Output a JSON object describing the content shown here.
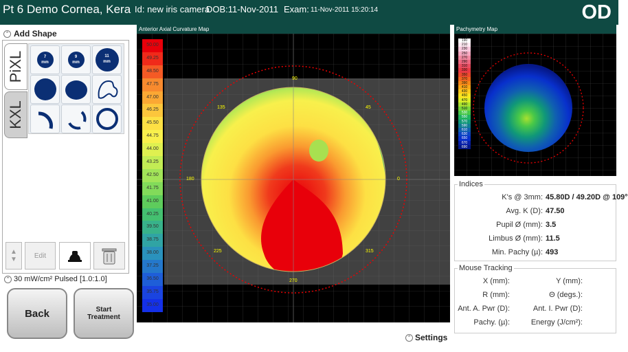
{
  "header": {
    "patient": "Pt 6 Demo Cornea, Kera",
    "id": "Id: new iris camera",
    "dob": "DOB:11-Nov-2011",
    "exam_label": "Exam:",
    "exam_value": "11-Nov-2011 15:20:14",
    "eye": "OD"
  },
  "add_shape": {
    "title": "Add Shape",
    "tabs": [
      "PiXL",
      "KXL"
    ],
    "sizes": [
      {
        "value": "7",
        "unit": "mm"
      },
      {
        "value": "9",
        "unit": "mm"
      },
      {
        "value": "11",
        "unit": "mm"
      }
    ],
    "edit_label": "Edit"
  },
  "pulse": "30 mW/cm² Pulsed [1.0:1.0]",
  "buttons": {
    "back": "Back",
    "start": "Start Treatment"
  },
  "axial_map": {
    "title": "Anterior Axial Curvature Map",
    "legend": [
      "50.00",
      "49.25",
      "48.50",
      "47.75",
      "47.00",
      "46.25",
      "45.50",
      "44.75",
      "44.00",
      "43.25",
      "42.50",
      "41.75",
      "41.00",
      "40.25",
      "39.50",
      "38.75",
      "38.00",
      "37.25",
      "36.50",
      "35.75",
      "35.00"
    ],
    "legend_colors": [
      "#e8000a",
      "#f02a1a",
      "#f55a25",
      "#f88a2e",
      "#fba834",
      "#fcc63c",
      "#fde044",
      "#f8f04c",
      "#dff050",
      "#c2ec54",
      "#a2e458",
      "#82da5a",
      "#5ecc5c",
      "#44c070",
      "#38b28a",
      "#30a4a4",
      "#2a92bc",
      "#2478cc",
      "#1e5ed8",
      "#1a44e0",
      "#1430e8"
    ],
    "angles": [
      "90",
      "45",
      "0",
      "315",
      "270",
      "225",
      "180",
      "135"
    ]
  },
  "pachy_map": {
    "title": "Pachymetry Map",
    "legend": [
      "190",
      "210",
      "230",
      "250",
      "270",
      "290",
      "310",
      "330",
      "350",
      "370",
      "390",
      "410",
      "430",
      "450",
      "470",
      "490",
      "510",
      "530",
      "550",
      "570",
      "590",
      "610",
      "630",
      "650",
      "670",
      "690"
    ],
    "legend_colors": [
      "#ffffff",
      "#fde8f0",
      "#f8c8dc",
      "#f4a8c0",
      "#f088a0",
      "#ec6880",
      "#e84c60",
      "#e83a44",
      "#ec4a2c",
      "#f06820",
      "#f48818",
      "#f8a818",
      "#fcc81c",
      "#f8e420",
      "#d8ec28",
      "#a8e030",
      "#78d43c",
      "#48c848",
      "#20b460",
      "#109878",
      "#107c94",
      "#1060b0",
      "#0c44c4",
      "#0830cc",
      "#0820a8",
      "#061888"
    ]
  },
  "indices": {
    "title": "Indices",
    "rows": [
      {
        "label": "K's @ 3mm:",
        "value": "45.80D / 49.20D @ 109°"
      },
      {
        "label": "Avg. K (D):",
        "value": "47.50"
      },
      {
        "label": "Pupil Ø (mm):",
        "value": "3.5"
      },
      {
        "label": "Limbus Ø (mm):",
        "value": "11.5"
      },
      {
        "label": "Min. Pachy (µ):",
        "value": "493"
      }
    ]
  },
  "mouse_tracking": {
    "title": "Mouse Tracking",
    "left": [
      "X (mm):",
      "R (mm):",
      "Ant. A. Pwr (D):",
      "Pachy. (µ):"
    ],
    "right": [
      "Y (mm):",
      "Θ (degs.):",
      "Ant. I. Pwr (D):",
      "Energy (J/cm²):"
    ]
  },
  "settings": "Settings"
}
